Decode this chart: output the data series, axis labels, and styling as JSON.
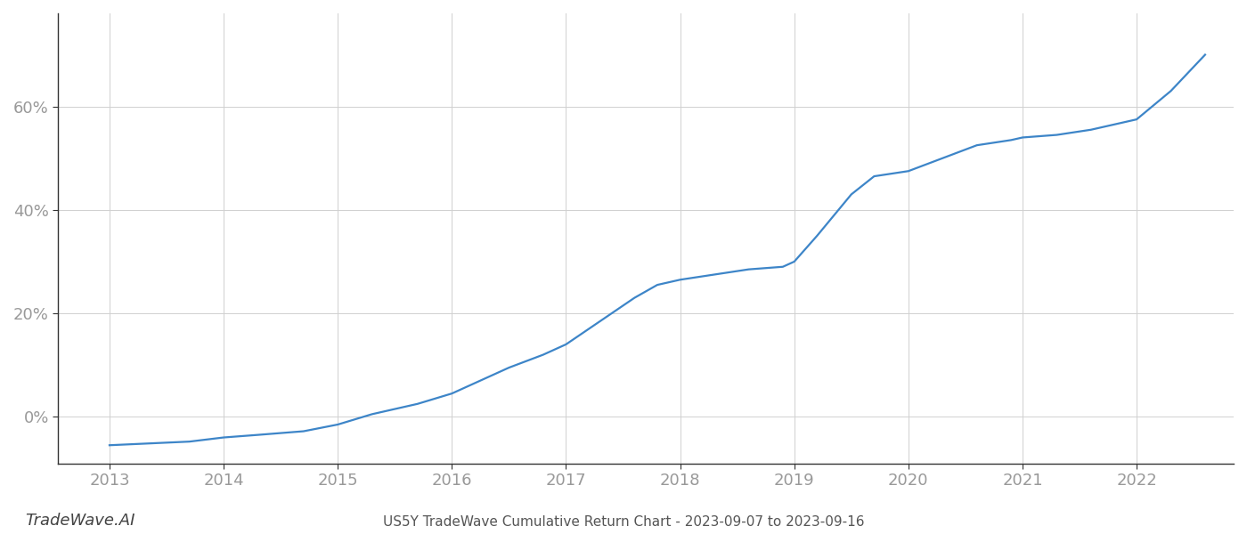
{
  "x_years": [
    2013.0,
    2013.3,
    2013.7,
    2014.0,
    2014.3,
    2014.7,
    2015.0,
    2015.3,
    2015.7,
    2016.0,
    2016.2,
    2016.5,
    2016.8,
    2017.0,
    2017.2,
    2017.4,
    2017.6,
    2017.8,
    2018.0,
    2018.3,
    2018.6,
    2018.9,
    2019.0,
    2019.2,
    2019.5,
    2019.7,
    2020.0,
    2020.3,
    2020.6,
    2020.9,
    2021.0,
    2021.3,
    2021.6,
    2021.9,
    2022.0,
    2022.3,
    2022.6
  ],
  "y_values": [
    -5.5,
    -5.2,
    -4.8,
    -4.0,
    -3.5,
    -2.8,
    -1.5,
    0.5,
    2.5,
    4.5,
    6.5,
    9.5,
    12.0,
    14.0,
    17.0,
    20.0,
    23.0,
    25.5,
    26.5,
    27.5,
    28.5,
    29.0,
    30.0,
    35.0,
    43.0,
    46.5,
    47.5,
    50.0,
    52.5,
    53.5,
    54.0,
    54.5,
    55.5,
    57.0,
    57.5,
    63.0,
    70.0
  ],
  "line_color": "#3d85c8",
  "line_width": 1.6,
  "background_color": "#ffffff",
  "grid_color": "#d0d0d0",
  "yticks": [
    0,
    20,
    40,
    60
  ],
  "ytick_labels": [
    "0%",
    "20%",
    "40%",
    "60%"
  ],
  "xticks": [
    2013,
    2014,
    2015,
    2016,
    2017,
    2018,
    2019,
    2020,
    2021,
    2022
  ],
  "xlim": [
    2012.55,
    2022.85
  ],
  "ylim": [
    -9,
    78
  ],
  "title": "US5Y TradeWave Cumulative Return Chart - 2023-09-07 to 2023-09-16",
  "title_fontsize": 11,
  "title_color": "#555555",
  "watermark": "TradeWave.AI",
  "watermark_fontsize": 13,
  "watermark_color": "#444444",
  "tick_label_color": "#999999",
  "tick_fontsize": 13,
  "spine_color": "#333333"
}
